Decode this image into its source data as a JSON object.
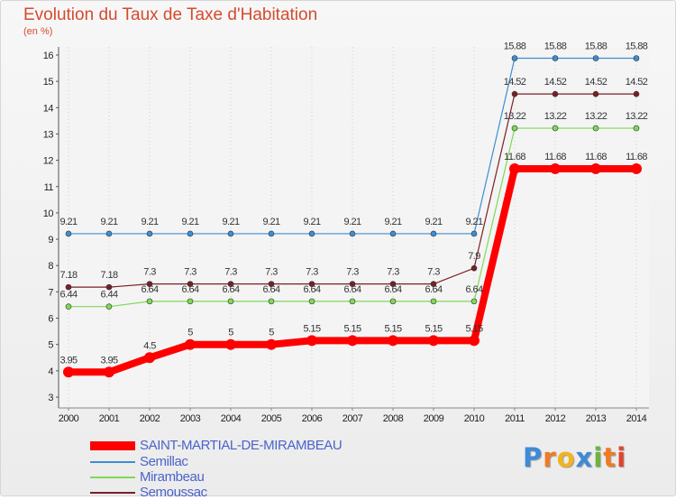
{
  "header": {
    "title": "Evolution du Taux de Taxe d'Habitation",
    "subtitle": "(en %)"
  },
  "logo": {
    "text": "Proxiti",
    "colors": [
      "#3f8ad6",
      "#ef7b22",
      "#f1b51c",
      "#3f8ad6",
      "#6cb33f",
      "#ef7b22",
      "#e0442c"
    ]
  },
  "chart_data": {
    "type": "line",
    "title": "Evolution du Taux de Taxe d'Habitation",
    "subtitle": "(en %)",
    "xlabel": "",
    "ylabel": "",
    "x": [
      2000,
      2001,
      2002,
      2003,
      2004,
      2005,
      2006,
      2007,
      2008,
      2009,
      2010,
      2011,
      2012,
      2013,
      2014
    ],
    "ylim": [
      3,
      16
    ],
    "yticks": [
      3,
      4,
      5,
      6,
      7,
      8,
      9,
      10,
      11,
      12,
      13,
      14,
      15,
      16
    ],
    "grid": "vertical dotted",
    "legend_position": "bottom-left",
    "series": [
      {
        "name": "SAINT-MARTIAL-DE-MIRAMBEAU",
        "color": "#ff0000",
        "values": [
          3.95,
          3.95,
          4.5,
          5,
          5,
          5,
          5.15,
          5.15,
          5.15,
          5.15,
          5.15,
          11.68,
          11.68,
          11.68,
          11.68
        ],
        "labels": [
          "3.95",
          "3.95",
          "4.5",
          "5",
          "5",
          "5",
          "5.15",
          "5.15",
          "5.15",
          "5.15",
          "5.15",
          "11.68",
          "11.68",
          "11.68",
          "11.68"
        ]
      },
      {
        "name": "Semillac",
        "color": "#3b8ed3",
        "values": [
          9.21,
          9.21,
          9.21,
          9.21,
          9.21,
          9.21,
          9.21,
          9.21,
          9.21,
          9.21,
          9.21,
          15.88,
          15.88,
          15.88,
          15.88
        ],
        "labels": [
          "9.21",
          "9.21",
          "9.21",
          "9.21",
          "9.21",
          "9.21",
          "9.21",
          "9.21",
          "9.21",
          "9.21",
          "9.21",
          "15.88",
          "15.88",
          "15.88",
          "15.88"
        ]
      },
      {
        "name": "Mirambeau",
        "color": "#7ed957",
        "values": [
          6.44,
          6.44,
          6.64,
          6.64,
          6.64,
          6.64,
          6.64,
          6.64,
          6.64,
          6.64,
          6.64,
          13.22,
          13.22,
          13.22,
          13.22
        ],
        "labels": [
          "6.44",
          "6.44",
          "6.64",
          "6.64",
          "6.64",
          "6.64",
          "6.64",
          "6.64",
          "6.64",
          "6.64",
          "6.64",
          "13.22",
          "13.22",
          "13.22",
          "13.22"
        ]
      },
      {
        "name": "Semoussac",
        "color": "#7b1f25",
        "values": [
          7.18,
          7.18,
          7.3,
          7.3,
          7.3,
          7.3,
          7.3,
          7.3,
          7.3,
          7.3,
          7.9,
          14.52,
          14.52,
          14.52,
          14.52
        ],
        "labels": [
          "7.18",
          "7.18",
          "7.3",
          "7.3",
          "7.3",
          "7.3",
          "7.3",
          "7.3",
          "7.3",
          "7.3",
          "7.9",
          "14.52",
          "14.52",
          "14.52",
          "14.52"
        ]
      }
    ]
  }
}
